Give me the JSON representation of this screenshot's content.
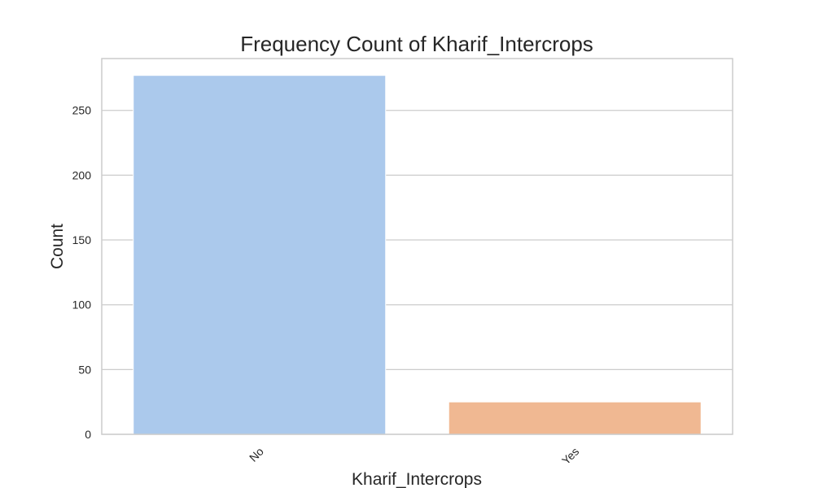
{
  "chart_data": {
    "type": "bar",
    "title": "Frequency Count of Kharif_Intercrops",
    "xlabel": "Kharif_Intercrops",
    "ylabel": "Count",
    "categories": [
      "No",
      "Yes"
    ],
    "values": [
      277,
      25
    ],
    "colors": [
      "#abc9ec",
      "#f0b892"
    ],
    "ylim": [
      0,
      277
    ],
    "yticks": [
      0,
      50,
      100,
      150,
      200,
      250
    ],
    "grid": true,
    "xtick_rotation": 45
  }
}
